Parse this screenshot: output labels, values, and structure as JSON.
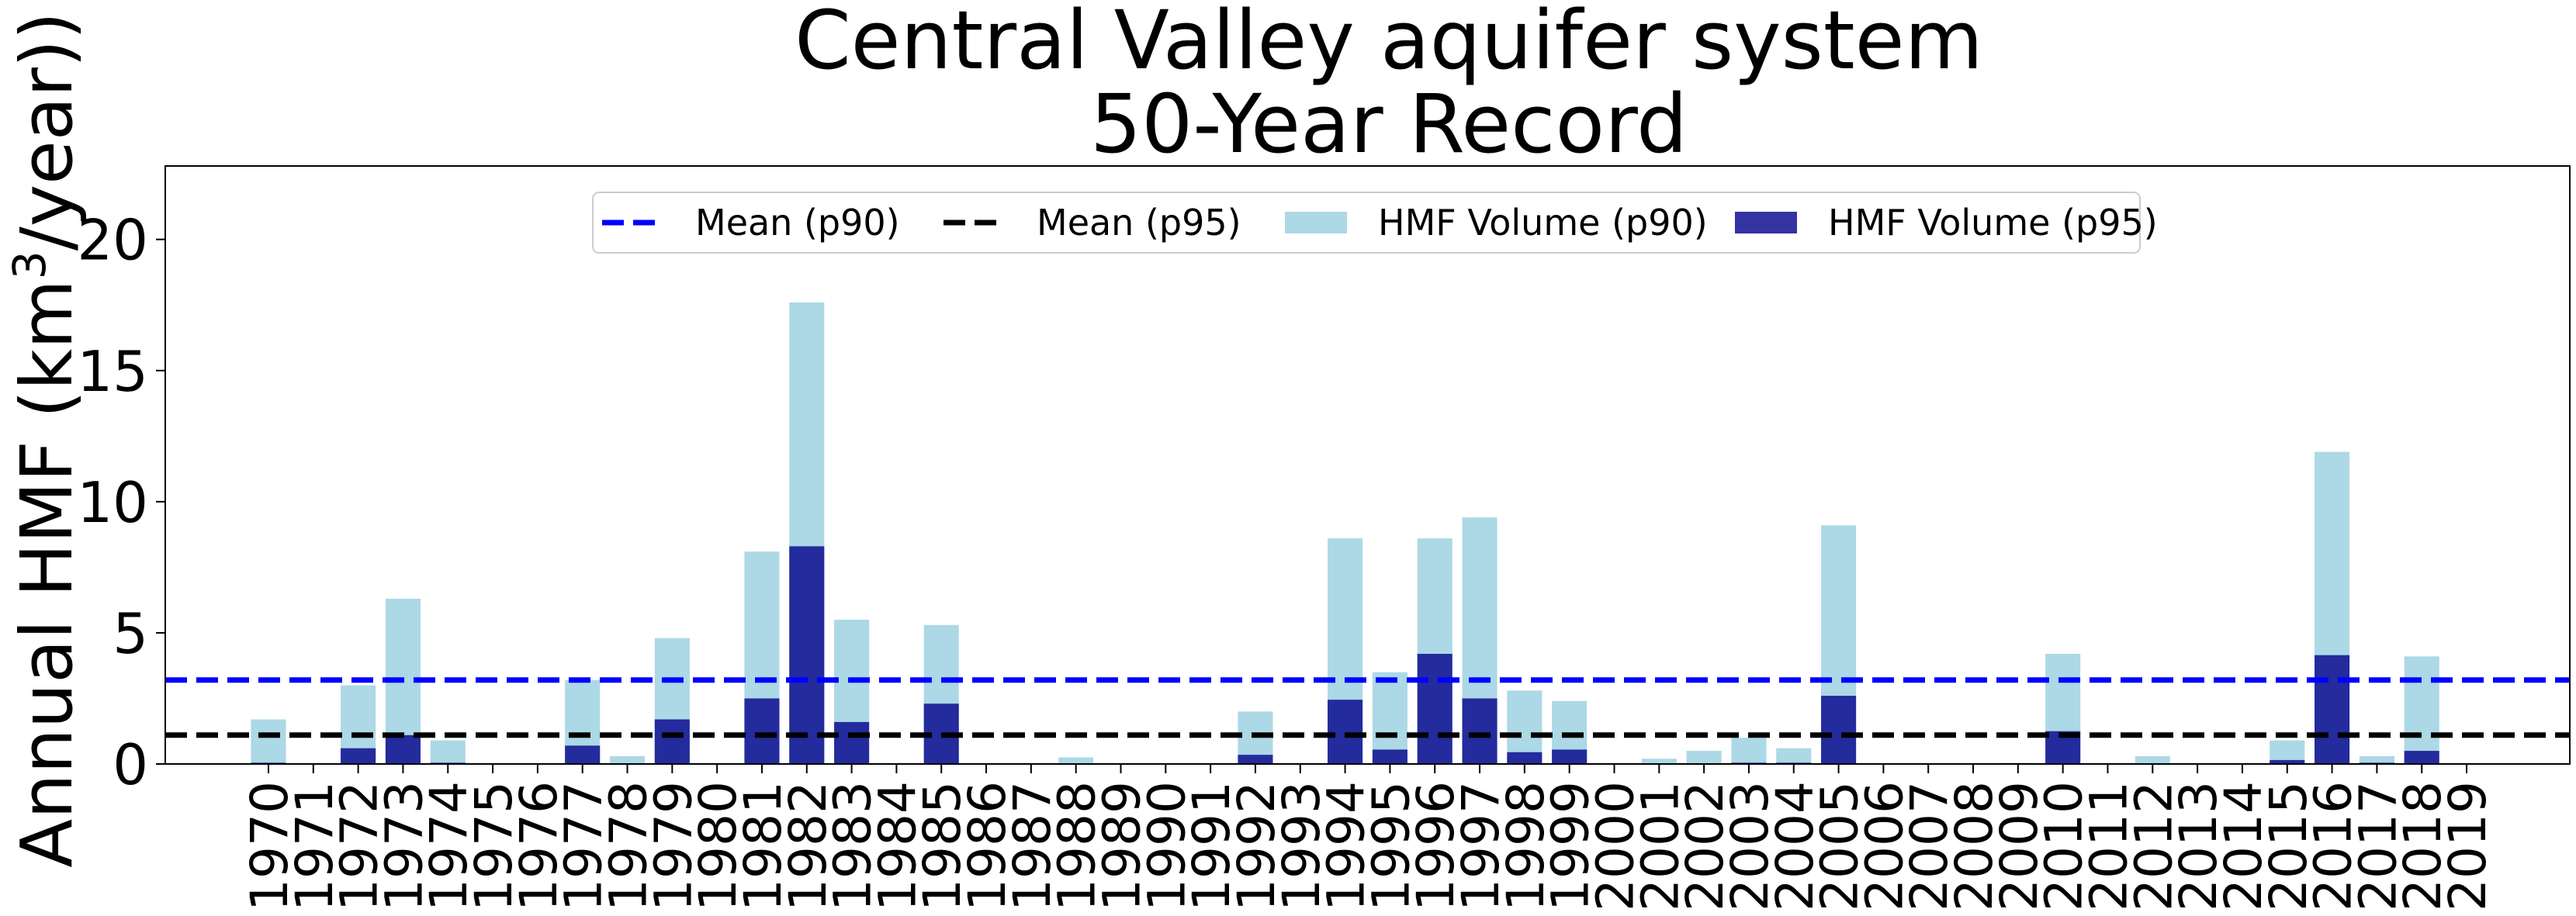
{
  "chart_data": {
    "type": "bar",
    "title": "Central Valley aquifer system",
    "subtitle": "50-Year Record",
    "xlabel": "",
    "ylabel": "Annual HMF (km",
    "ylabel_sup": "3",
    "ylabel_tail": "/year))",
    "ylim": [
      0,
      22.8
    ],
    "yticks": [
      0,
      5,
      10,
      15,
      20
    ],
    "grid": false,
    "legend_placement": "top-center",
    "categories": [
      "1970",
      "1971",
      "1972",
      "1973",
      "1974",
      "1975",
      "1976",
      "1977",
      "1978",
      "1979",
      "1980",
      "1981",
      "1982",
      "1983",
      "1984",
      "1985",
      "1986",
      "1987",
      "1988",
      "1989",
      "1990",
      "1991",
      "1992",
      "1993",
      "1994",
      "1995",
      "1996",
      "1997",
      "1998",
      "1999",
      "2000",
      "2001",
      "2002",
      "2003",
      "2004",
      "2005",
      "2006",
      "2007",
      "2008",
      "2009",
      "2010",
      "2011",
      "2012",
      "2013",
      "2014",
      "2015",
      "2016",
      "2017",
      "2018",
      "2019"
    ],
    "series": [
      {
        "name": "HMF Volume (p90)",
        "kind": "bar",
        "color": "#add8e6",
        "values": [
          1.7,
          0,
          3.0,
          6.3,
          0.9,
          0,
          0,
          3.2,
          0.3,
          4.8,
          0,
          8.1,
          17.6,
          5.5,
          0,
          5.3,
          0,
          0,
          0.25,
          0,
          0,
          0,
          2.0,
          0,
          8.6,
          3.5,
          8.6,
          9.4,
          2.8,
          2.4,
          0,
          0.2,
          0.5,
          1.0,
          0.6,
          9.1,
          0,
          0,
          0,
          0.05,
          4.2,
          0,
          0.3,
          0,
          0,
          0.9,
          11.9,
          0.3,
          4.1,
          0
        ]
      },
      {
        "name": "HMF Volume (p95)",
        "kind": "bar",
        "color": "#00008b",
        "opacity": 0.8,
        "values": [
          0.05,
          0,
          0.6,
          1.1,
          0.05,
          0,
          0,
          0.7,
          0,
          1.7,
          0,
          2.5,
          8.3,
          1.6,
          0,
          2.3,
          0,
          0,
          0,
          0,
          0,
          0,
          0.35,
          0,
          2.45,
          0.55,
          4.2,
          2.5,
          0.45,
          0.55,
          0,
          0,
          0,
          0.05,
          0.05,
          2.6,
          0,
          0,
          0,
          0,
          1.25,
          0,
          0,
          0,
          0,
          0.15,
          4.15,
          0.05,
          0.5,
          0
        ]
      },
      {
        "name": "Mean (p90)",
        "kind": "hline",
        "color": "#0000ff",
        "value": 3.2
      },
      {
        "name": "Mean (p95)",
        "kind": "hline",
        "color": "#000000",
        "value": 1.1
      }
    ],
    "legend": [
      "Mean (p90)",
      "Mean (p95)",
      "HMF Volume (p90)",
      "HMF Volume (p95)"
    ]
  }
}
